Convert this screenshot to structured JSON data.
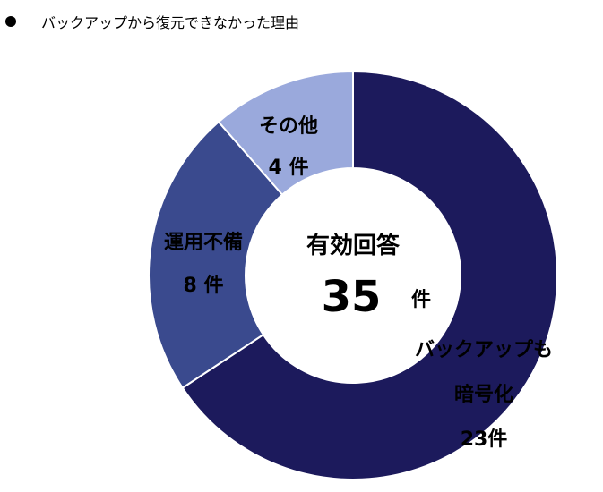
{
  "title": "バックアップから復元できなかった理由",
  "center": {
    "label": "有効回答",
    "total": "35",
    "unit": "件"
  },
  "chart_data": {
    "type": "pie",
    "variant": "donut",
    "title": "バックアップから復元できなかった理由",
    "total": 35,
    "slices": [
      {
        "label": "バックアップも暗号化",
        "value": 23,
        "value_text": "23件",
        "color": "#1c1a5c"
      },
      {
        "label": "運用不備",
        "value": 8,
        "value_text": "8件",
        "color": "#3a4a8e"
      },
      {
        "label": "その他",
        "value": 4,
        "value_text": "4件",
        "color": "#9aa9dc"
      }
    ],
    "slice_label_lines": [
      [
        "バックアップも",
        "暗号化",
        "23件"
      ],
      [
        "運用不備",
        "8 件"
      ],
      [
        "その他",
        "4 件"
      ]
    ]
  }
}
